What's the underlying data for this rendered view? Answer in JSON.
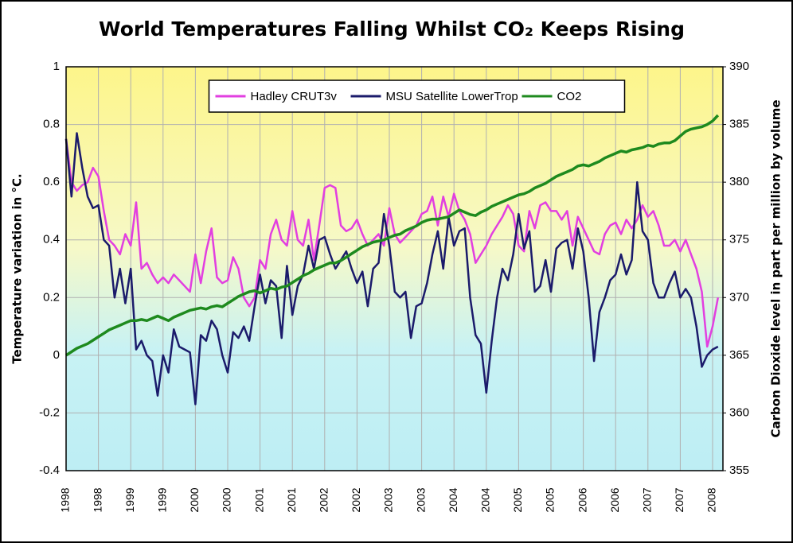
{
  "chart_data": {
    "type": "line",
    "title": "World Temperatures Falling Whilst CO₂ Keeps Rising",
    "ylabel": "Temperature variation in °C.",
    "y2label": "Carbon Dioxide level in part per million by volume",
    "categories": [
      "1998",
      null,
      null,
      null,
      null,
      null,
      "1998",
      null,
      null,
      null,
      null,
      null,
      "1999",
      null,
      null,
      null,
      null,
      null,
      "1999",
      null,
      null,
      null,
      null,
      null,
      "2000",
      null,
      null,
      null,
      null,
      null,
      "2000",
      null,
      null,
      null,
      null,
      null,
      "2001",
      null,
      null,
      null,
      null,
      null,
      "2001",
      null,
      null,
      null,
      null,
      null,
      "2002",
      null,
      null,
      null,
      null,
      null,
      "2002",
      null,
      null,
      null,
      null,
      null,
      "2003",
      null,
      null,
      null,
      null,
      null,
      "2003",
      null,
      null,
      null,
      null,
      null,
      "2004",
      null,
      null,
      null,
      null,
      null,
      "2004",
      null,
      null,
      null,
      null,
      null,
      "2005",
      null,
      null,
      null,
      null,
      null,
      "2005",
      null,
      null,
      null,
      null,
      null,
      "2006",
      null,
      null,
      null,
      null,
      null,
      "2006",
      null,
      null,
      null,
      null,
      null,
      "2007",
      null,
      null,
      null,
      null,
      null,
      "2007",
      null,
      null,
      null,
      null,
      null,
      "2008",
      null
    ],
    "series": [
      {
        "name": "Hadley CRUT3v",
        "color": "#e23fe0",
        "values": [
          0.75,
          0.6,
          0.57,
          0.59,
          0.6,
          0.65,
          0.62,
          0.5,
          0.4,
          0.38,
          0.35,
          0.42,
          0.38,
          0.53,
          0.3,
          0.32,
          0.28,
          0.25,
          0.27,
          0.25,
          0.28,
          0.26,
          0.24,
          0.22,
          0.35,
          0.25,
          0.36,
          0.44,
          0.27,
          0.25,
          0.26,
          0.34,
          0.3,
          0.2,
          0.17,
          0.2,
          0.33,
          0.3,
          0.42,
          0.47,
          0.4,
          0.38,
          0.5,
          0.4,
          0.38,
          0.47,
          0.33,
          0.45,
          0.58,
          0.59,
          0.58,
          0.45,
          0.43,
          0.44,
          0.47,
          0.42,
          0.38,
          0.4,
          0.42,
          0.38,
          0.51,
          0.42,
          0.39,
          0.41,
          0.43,
          0.45,
          0.49,
          0.5,
          0.55,
          0.45,
          0.55,
          0.48,
          0.56,
          0.5,
          0.47,
          0.42,
          0.32,
          0.35,
          0.38,
          0.42,
          0.45,
          0.48,
          0.52,
          0.49,
          0.38,
          0.36,
          0.5,
          0.44,
          0.52,
          0.53,
          0.5,
          0.5,
          0.47,
          0.5,
          0.38,
          0.48,
          0.44,
          0.4,
          0.36,
          0.35,
          0.42,
          0.45,
          0.46,
          0.42,
          0.47,
          0.44,
          0.47,
          0.52,
          0.48,
          0.5,
          0.45,
          0.38,
          0.38,
          0.4,
          0.36,
          0.4,
          0.35,
          0.3,
          0.22,
          0.03,
          0.1,
          0.2
        ]
      },
      {
        "name": "MSU Satellite LowerTrop",
        "color": "#1b1b6b",
        "values": [
          0.75,
          0.55,
          0.77,
          0.65,
          0.55,
          0.51,
          0.52,
          0.4,
          0.38,
          0.2,
          0.3,
          0.18,
          0.3,
          0.02,
          0.05,
          0.0,
          -0.02,
          -0.14,
          0.0,
          -0.06,
          0.09,
          0.03,
          0.02,
          0.01,
          -0.17,
          0.07,
          0.05,
          0.12,
          0.09,
          0.0,
          -0.06,
          0.08,
          0.06,
          0.1,
          0.05,
          0.17,
          0.28,
          0.18,
          0.26,
          0.24,
          0.06,
          0.31,
          0.14,
          0.24,
          0.28,
          0.38,
          0.3,
          0.4,
          0.41,
          0.35,
          0.3,
          0.33,
          0.36,
          0.3,
          0.25,
          0.29,
          0.17,
          0.3,
          0.32,
          0.49,
          0.38,
          0.22,
          0.2,
          0.22,
          0.06,
          0.17,
          0.18,
          0.25,
          0.35,
          0.43,
          0.3,
          0.48,
          0.38,
          0.43,
          0.44,
          0.2,
          0.07,
          0.04,
          -0.13,
          0.05,
          0.2,
          0.3,
          0.26,
          0.35,
          0.49,
          0.37,
          0.43,
          0.22,
          0.24,
          0.33,
          0.22,
          0.37,
          0.39,
          0.4,
          0.3,
          0.44,
          0.36,
          0.2,
          -0.02,
          0.15,
          0.2,
          0.26,
          0.28,
          0.35,
          0.28,
          0.33,
          0.6,
          0.43,
          0.4,
          0.25,
          0.2,
          0.2,
          0.25,
          0.29,
          0.2,
          0.23,
          0.2,
          0.1,
          -0.04,
          0.0,
          0.02,
          0.03
        ]
      },
      {
        "name": "CO2",
        "color": "#1e8a1e",
        "axis": "y2",
        "values": [
          365.0,
          365.3,
          365.6,
          365.8,
          366.0,
          366.3,
          366.6,
          366.9,
          367.2,
          367.4,
          367.6,
          367.8,
          368.0,
          368.0,
          368.1,
          368.0,
          368.2,
          368.4,
          368.2,
          368.0,
          368.3,
          368.5,
          368.7,
          368.9,
          369.0,
          369.1,
          369.0,
          369.2,
          369.3,
          369.2,
          369.5,
          369.8,
          370.1,
          370.3,
          370.5,
          370.6,
          370.4,
          370.6,
          370.8,
          370.7,
          370.9,
          371.0,
          371.3,
          371.6,
          371.9,
          372.1,
          372.4,
          372.6,
          372.8,
          373.0,
          373.0,
          373.2,
          373.5,
          373.8,
          374.1,
          374.4,
          374.6,
          374.8,
          374.9,
          375.0,
          375.2,
          375.4,
          375.5,
          375.8,
          376.0,
          376.2,
          376.5,
          376.7,
          376.8,
          376.8,
          376.9,
          377.0,
          377.3,
          377.6,
          377.4,
          377.2,
          377.1,
          377.4,
          377.6,
          377.9,
          378.1,
          378.3,
          378.5,
          378.7,
          378.9,
          379.0,
          379.2,
          379.5,
          379.7,
          379.9,
          380.2,
          380.5,
          380.7,
          380.9,
          381.1,
          381.4,
          381.5,
          381.4,
          381.6,
          381.8,
          382.1,
          382.3,
          382.5,
          382.7,
          382.6,
          382.8,
          382.9,
          383.0,
          383.2,
          383.1,
          383.3,
          383.4,
          383.4,
          383.6,
          384.0,
          384.4,
          384.6,
          384.7,
          384.8,
          385.0,
          385.3,
          385.8
        ]
      }
    ],
    "ylim": [
      -0.4,
      1
    ],
    "yticks": [
      -0.4,
      -0.2,
      0,
      0.2,
      0.4,
      0.6,
      0.8,
      1
    ],
    "y2lim": [
      355,
      390
    ],
    "y2ticks": [
      355,
      360,
      365,
      370,
      375,
      380,
      385,
      390
    ],
    "grid": true,
    "legend": "top"
  }
}
